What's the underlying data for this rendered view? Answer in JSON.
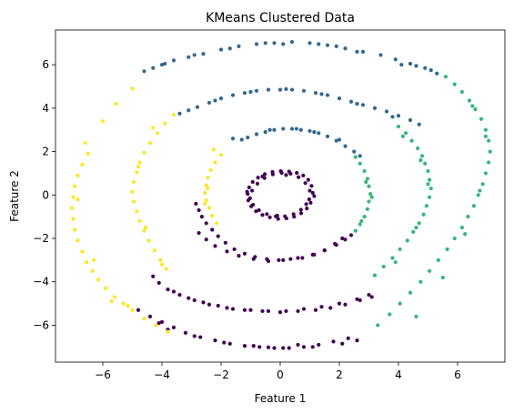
{
  "chart_data": {
    "type": "scatter",
    "title": "KMeans Clustered Data",
    "xlabel": "Feature 1",
    "ylabel": "Feature 2",
    "xlim": [
      -7.6,
      7.6
    ],
    "ylim": [
      -7.7,
      7.6
    ],
    "xticks": [
      -6,
      -4,
      -2,
      0,
      2,
      4,
      6
    ],
    "yticks": [
      -6,
      -4,
      -2,
      0,
      2,
      4,
      6
    ],
    "xtick_labels": [
      "−6",
      "−4",
      "−2",
      "0",
      "2",
      "4",
      "6"
    ],
    "ytick_labels": [
      "−6",
      "−4",
      "−2",
      "0",
      "2",
      "4",
      "6"
    ],
    "grid": false,
    "legend": "none",
    "cluster_colors": [
      "#440154",
      "#31688e",
      "#35b779",
      "#fde725"
    ],
    "series": [
      {
        "color": "#440154",
        "x": [
          1.1,
          1.06,
          0.95,
          0.78,
          0.56,
          0.3,
          0.02,
          -0.26,
          -0.52,
          -0.75,
          -0.93,
          -1.05,
          -1.1,
          -1.08,
          -0.98,
          -0.82,
          -0.6,
          -0.35,
          -0.07,
          0.21,
          0.47,
          0.71,
          0.9,
          1.03,
          1.0,
          0.85,
          0.62,
          0.35,
          0.05,
          -0.25,
          -0.53,
          -0.77,
          -0.95,
          -1.02,
          -0.92,
          -0.72,
          -0.45,
          -0.15,
          0.16,
          0.45,
          0.7,
          0.88,
          1.15,
          0.98,
          -1.12,
          -0.1,
          0.2,
          -0.6,
          2.1,
          1.85,
          1.5,
          1.15,
          0.75,
          0.35,
          -0.05,
          -0.45,
          -0.85,
          -1.2,
          -1.55,
          -1.85,
          -2.1,
          -2.3,
          -2.5,
          -2.65,
          -2.75,
          -2.85,
          -2.75,
          -2.5,
          -2.2,
          -1.8,
          -1.4,
          -0.9,
          -0.4,
          0.1,
          0.6,
          1.1,
          1.5,
          1.9,
          2.2,
          2.4,
          3.1,
          2.7,
          2.2,
          1.7,
          1.2,
          0.6,
          0.0,
          -0.6,
          -1.2,
          -1.8,
          -2.4,
          -2.9,
          -3.4,
          -3.8,
          -4.1,
          -4.3,
          -3.6,
          -3.1,
          -2.6,
          -2.1,
          -1.6,
          -1.0,
          -0.4,
          0.2,
          0.8,
          1.4,
          2.0,
          2.6,
          3.0,
          2.3,
          1.8,
          1.3,
          0.8,
          0.3,
          -0.2,
          -0.7,
          -1.2,
          -1.7,
          -2.2,
          -2.7,
          -3.2,
          -3.6,
          -4.0,
          -4.4,
          -4.8,
          -4.1,
          -3.8,
          -2.9,
          -1.9,
          -0.9,
          0.1,
          1.1,
          2.1,
          2.6,
          0.6,
          -0.4
        ],
        "y": [
          0.1,
          0.42,
          0.7,
          0.9,
          1.02,
          1.08,
          1.1,
          1.06,
          0.96,
          0.8,
          0.6,
          0.35,
          0.05,
          -0.25,
          -0.52,
          -0.75,
          -0.92,
          -1.03,
          -1.1,
          -1.08,
          -1.0,
          -0.84,
          -0.62,
          -0.36,
          0.2,
          0.55,
          0.82,
          0.98,
          1.02,
          0.95,
          0.78,
          0.52,
          0.2,
          -0.15,
          -0.45,
          -0.7,
          -0.88,
          -0.98,
          -0.98,
          -0.88,
          -0.68,
          -0.42,
          -0.05,
          -0.2,
          0.15,
          -0.95,
          0.92,
          0.85,
          -2.0,
          -2.25,
          -2.55,
          -2.75,
          -2.9,
          -2.95,
          -3.0,
          -2.95,
          -2.85,
          -2.7,
          -2.5,
          -2.2,
          -1.9,
          -1.6,
          -1.3,
          -1.0,
          -0.7,
          -0.4,
          -1.75,
          -2.05,
          -2.35,
          -2.6,
          -2.8,
          -2.95,
          -3.05,
          -3.0,
          -2.9,
          -2.75,
          -2.55,
          -2.3,
          -2.05,
          -1.85,
          -4.7,
          -4.85,
          -5.05,
          -5.2,
          -5.3,
          -5.35,
          -5.4,
          -5.35,
          -5.3,
          -5.2,
          -5.05,
          -4.85,
          -4.6,
          -4.35,
          -4.05,
          -3.75,
          -4.45,
          -4.75,
          -4.95,
          -5.1,
          -5.25,
          -5.3,
          -5.35,
          -5.35,
          -5.25,
          -5.15,
          -5.0,
          -4.8,
          -4.6,
          -6.6,
          -6.75,
          -6.9,
          -7.0,
          -7.05,
          -7.05,
          -7.0,
          -6.95,
          -6.85,
          -6.7,
          -6.55,
          -6.35,
          -6.1,
          -5.85,
          -5.6,
          -5.3,
          -5.9,
          -6.2,
          -6.5,
          -6.8,
          -6.95,
          -7.05,
          -7.0,
          -6.85,
          -6.7,
          -6.9,
          -7.02
        ]
      },
      {
        "color": "#31688e",
        "x": [
          -1.3,
          -1.1,
          -0.8,
          -0.5,
          -0.2,
          0.1,
          0.4,
          0.7,
          1.0,
          1.3,
          1.6,
          1.9,
          2.2,
          2.5,
          2.7,
          -1.6,
          -0.35,
          0.55,
          1.15,
          2.0,
          -3.1,
          -2.8,
          -2.4,
          -2.0,
          -1.6,
          -1.2,
          -0.8,
          -0.4,
          0.0,
          0.4,
          0.8,
          1.2,
          1.6,
          2.0,
          2.4,
          2.8,
          3.2,
          3.6,
          4.0,
          4.4,
          4.7,
          -3.4,
          -2.2,
          -1.0,
          0.2,
          1.4,
          2.6,
          3.8,
          -4.6,
          -4.3,
          -4.0,
          -3.6,
          -3.1,
          -2.6,
          -2.0,
          -1.4,
          -0.8,
          -0.2,
          0.4,
          1.0,
          1.6,
          2.2,
          2.8,
          3.4,
          3.9,
          4.4,
          4.9,
          5.3,
          -3.9,
          -2.9,
          -1.7,
          0.1,
          1.3,
          2.6,
          4.1,
          5.1,
          -0.5,
          1.9,
          4.6
        ],
        "y": [
          2.55,
          2.65,
          2.8,
          2.9,
          3.0,
          3.05,
          3.05,
          3.0,
          2.95,
          2.85,
          2.7,
          2.5,
          2.25,
          2.0,
          1.8,
          2.6,
          3.0,
          3.05,
          2.9,
          2.55,
          3.9,
          4.05,
          4.25,
          4.45,
          4.6,
          4.7,
          4.8,
          4.85,
          4.85,
          4.85,
          4.8,
          4.7,
          4.6,
          4.45,
          4.3,
          4.15,
          4.0,
          3.85,
          3.65,
          3.45,
          3.25,
          3.75,
          4.35,
          4.75,
          4.88,
          4.65,
          4.2,
          3.6,
          5.7,
          5.85,
          6.0,
          6.2,
          6.35,
          6.5,
          6.7,
          6.85,
          6.95,
          7.0,
          7.05,
          7.0,
          6.9,
          6.75,
          6.6,
          6.45,
          6.25,
          6.05,
          5.85,
          5.6,
          6.05,
          6.45,
          6.75,
          6.95,
          6.95,
          6.6,
          6.0,
          5.75,
          7.0,
          6.85,
          5.95
        ]
      },
      {
        "color": "#35b779",
        "x": [
          2.55,
          2.7,
          2.85,
          2.95,
          3.0,
          3.05,
          3.0,
          2.95,
          2.85,
          2.7,
          2.55,
          2.9,
          3.1,
          2.75,
          4.0,
          4.25,
          4.45,
          4.65,
          4.8,
          4.9,
          5.0,
          5.05,
          5.1,
          5.05,
          4.95,
          4.85,
          4.7,
          4.5,
          4.3,
          4.05,
          3.8,
          3.5,
          3.2,
          4.15,
          4.75,
          5.0,
          4.6,
          3.9,
          5.6,
          5.9,
          6.15,
          6.4,
          6.6,
          6.8,
          6.95,
          7.05,
          7.1,
          7.05,
          6.95,
          6.85,
          6.7,
          6.55,
          6.35,
          6.15,
          5.9,
          5.65,
          5.35,
          5.05,
          4.75,
          4.4,
          4.05,
          3.7,
          3.3,
          6.5,
          6.95,
          6.75,
          6.25,
          5.5,
          4.6
        ],
        "y": [
          1.75,
          1.45,
          1.1,
          0.75,
          0.4,
          0.05,
          -0.3,
          -0.65,
          -1.0,
          -1.35,
          -1.65,
          0.6,
          -0.1,
          -1.2,
          3.15,
          2.85,
          2.5,
          2.15,
          1.8,
          1.45,
          1.1,
          0.7,
          0.3,
          -0.1,
          -0.5,
          -0.9,
          -1.3,
          -1.7,
          -2.1,
          -2.5,
          -2.9,
          -3.3,
          -3.7,
          2.7,
          1.6,
          0.5,
          -1.5,
          -3.1,
          5.45,
          5.1,
          4.75,
          4.35,
          3.95,
          3.5,
          3.0,
          2.5,
          2.0,
          1.5,
          1.0,
          0.5,
          0.0,
          -0.5,
          -1.0,
          -1.5,
          -2.0,
          -2.5,
          -3.0,
          -3.5,
          -4.0,
          -4.5,
          -5.0,
          -5.5,
          -6.0,
          4.1,
          2.7,
          0.2,
          -1.8,
          -3.8,
          -5.6
        ]
      },
      {
        "color": "#fde725",
        "x": [
          -2.0,
          -2.2,
          -2.35,
          -2.45,
          -2.5,
          -2.55,
          -2.5,
          -2.4,
          -2.3,
          -2.15,
          -2.45,
          -2.55,
          -2.25,
          -3.6,
          -3.9,
          -4.15,
          -4.4,
          -4.6,
          -4.75,
          -4.85,
          -4.95,
          -5.0,
          -4.95,
          -4.85,
          -4.75,
          -4.6,
          -4.45,
          -4.25,
          -4.05,
          -3.85,
          -4.3,
          -4.8,
          -4.55,
          -4.0,
          -6.5,
          -6.7,
          -6.85,
          -6.95,
          -7.0,
          -7.05,
          -7.0,
          -6.95,
          -6.85,
          -6.7,
          -6.55,
          -6.35,
          -6.15,
          -5.9,
          -5.6,
          -5.3,
          -5.0,
          -4.6,
          -4.2,
          -3.8,
          -6.0,
          -5.55,
          -5.0,
          -6.6,
          -6.85,
          -6.3,
          -5.7,
          -5.15
        ],
        "y": [
          1.85,
          1.5,
          1.15,
          0.8,
          0.45,
          0.1,
          -0.25,
          -0.6,
          -0.95,
          -1.3,
          0.3,
          -0.4,
          2.1,
          3.7,
          3.3,
          2.85,
          2.4,
          1.95,
          1.5,
          1.05,
          0.6,
          0.15,
          -0.3,
          -0.75,
          -1.2,
          -1.65,
          -2.1,
          -2.55,
          -3.0,
          -3.4,
          3.1,
          1.3,
          -1.5,
          -3.2,
          1.9,
          1.4,
          0.9,
          0.4,
          -0.1,
          -0.6,
          -1.1,
          -1.6,
          -2.1,
          -2.6,
          -3.1,
          -3.5,
          -3.9,
          -4.3,
          -4.7,
          -5.0,
          -5.3,
          -5.7,
          -6.0,
          -6.3,
          3.4,
          4.2,
          4.9,
          2.4,
          -0.2,
          -3.0,
          -4.9,
          -5.1
        ]
      }
    ]
  }
}
